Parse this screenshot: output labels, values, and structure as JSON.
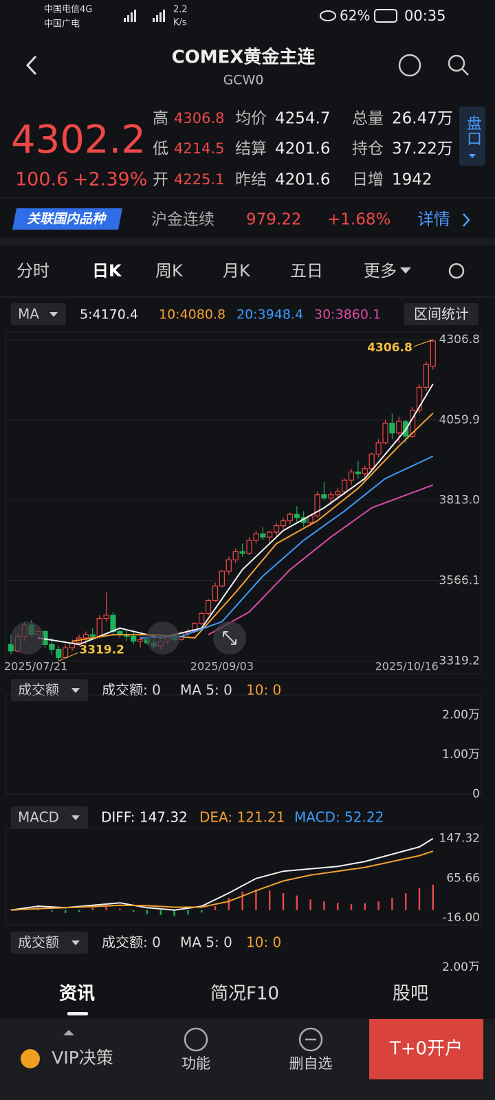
{
  "status": {
    "carrier1": "中国电信4G",
    "carrier2": "中国广电",
    "speed": "2.2",
    "speed_unit": "K/s",
    "battery": "62%",
    "time": "00:35"
  },
  "header": {
    "title": "COMEX黄金主连",
    "code": "GCW0"
  },
  "quote": {
    "price": "4302.2",
    "change": "100.6",
    "change_pct": "+2.39%",
    "stats": [
      {
        "label": "高",
        "value": "4306.8"
      },
      {
        "label": "均价",
        "value": "4254.7"
      },
      {
        "label": "总量",
        "value": "26.47万"
      },
      {
        "label": "低",
        "value": "4214.5"
      },
      {
        "label": "结算",
        "value": "4201.6"
      },
      {
        "label": "持仓",
        "value": "37.22万"
      },
      {
        "label": "开",
        "value": "4225.1"
      },
      {
        "label": "昨结",
        "value": "4201.6"
      },
      {
        "label": "日增",
        "value": "1942"
      }
    ],
    "side_button": "盘口"
  },
  "related": {
    "badge": "关联国内品种",
    "name": "沪金连续",
    "price": "979.22",
    "change": "+1.68%",
    "link": "详情"
  },
  "tabs": [
    "分时",
    "日K",
    "周K",
    "月K",
    "五日",
    "更多"
  ],
  "indicator_box": "MA",
  "stats_button": "区间统计",
  "chart_data": [
    {
      "type": "candlestick",
      "grid": true,
      "up_color": "#f04848",
      "down_color": "#1fb05a",
      "categories": [
        "2025/07/21",
        null,
        null,
        null,
        null,
        null,
        null,
        null,
        null,
        null,
        null,
        null,
        null,
        null,
        null,
        null,
        null,
        null,
        null,
        null,
        null,
        null,
        null,
        null,
        null,
        null,
        null,
        null,
        null,
        null,
        null,
        "2025/09/03",
        null,
        null,
        null,
        null,
        null,
        null,
        null,
        null,
        null,
        null,
        null,
        null,
        null,
        null,
        null,
        null,
        null,
        null,
        null,
        null,
        null,
        null,
        null,
        null,
        null,
        null,
        null,
        null,
        null,
        null,
        "2025/10/16"
      ],
      "ohlc": [
        [
          3370,
          3400,
          3340,
          3350
        ],
        [
          3350,
          3405,
          3345,
          3395
        ],
        [
          3395,
          3440,
          3380,
          3430
        ],
        [
          3430,
          3445,
          3390,
          3400
        ],
        [
          3400,
          3420,
          3380,
          3410
        ],
        [
          3410,
          3415,
          3360,
          3370
        ],
        [
          3370,
          3390,
          3340,
          3355
        ],
        [
          3355,
          3365,
          3319.2,
          3330
        ],
        [
          3330,
          3370,
          3328,
          3360
        ],
        [
          3360,
          3385,
          3350,
          3375
        ],
        [
          3375,
          3400,
          3365,
          3390
        ],
        [
          3390,
          3410,
          3370,
          3400
        ],
        [
          3400,
          3420,
          3385,
          3395
        ],
        [
          3395,
          3460,
          3390,
          3450
        ],
        [
          3450,
          3530,
          3440,
          3460
        ],
        [
          3460,
          3470,
          3395,
          3410
        ],
        [
          3410,
          3425,
          3390,
          3400
        ],
        [
          3400,
          3415,
          3380,
          3395
        ],
        [
          3395,
          3410,
          3370,
          3380
        ],
        [
          3380,
          3395,
          3360,
          3385
        ],
        [
          3385,
          3400,
          3370,
          3375
        ],
        [
          3375,
          3390,
          3355,
          3365
        ],
        [
          3365,
          3385,
          3355,
          3380
        ],
        [
          3380,
          3395,
          3370,
          3390
        ],
        [
          3390,
          3400,
          3375,
          3385
        ],
        [
          3385,
          3410,
          3380,
          3405
        ],
        [
          3405,
          3420,
          3395,
          3410
        ],
        [
          3410,
          3440,
          3405,
          3435
        ],
        [
          3435,
          3470,
          3430,
          3465
        ],
        [
          3465,
          3510,
          3460,
          3505
        ],
        [
          3505,
          3560,
          3500,
          3550
        ],
        [
          3550,
          3600,
          3545,
          3595
        ],
        [
          3595,
          3640,
          3585,
          3630
        ],
        [
          3630,
          3665,
          3620,
          3655
        ],
        [
          3655,
          3680,
          3640,
          3650
        ],
        [
          3650,
          3700,
          3645,
          3690
        ],
        [
          3690,
          3720,
          3680,
          3710
        ],
        [
          3710,
          3730,
          3690,
          3700
        ],
        [
          3700,
          3720,
          3680,
          3715
        ],
        [
          3715,
          3745,
          3705,
          3735
        ],
        [
          3735,
          3760,
          3725,
          3750
        ],
        [
          3750,
          3775,
          3740,
          3770
        ],
        [
          3770,
          3795,
          3745,
          3760
        ],
        [
          3760,
          3780,
          3730,
          3745
        ],
        [
          3745,
          3770,
          3735,
          3765
        ],
        [
          3765,
          3840,
          3760,
          3830
        ],
        [
          3830,
          3870,
          3815,
          3820
        ],
        [
          3820,
          3840,
          3800,
          3830
        ],
        [
          3830,
          3850,
          3815,
          3840
        ],
        [
          3840,
          3880,
          3830,
          3875
        ],
        [
          3875,
          3910,
          3860,
          3900
        ],
        [
          3900,
          3935,
          3880,
          3895
        ],
        [
          3895,
          3920,
          3870,
          3910
        ],
        [
          3910,
          3960,
          3900,
          3955
        ],
        [
          3955,
          4000,
          3945,
          3990
        ],
        [
          3990,
          4060,
          3985,
          4050
        ],
        [
          4050,
          4080,
          4000,
          4020
        ],
        [
          4020,
          4070,
          3990,
          4055
        ],
        [
          4055,
          4060,
          3990,
          4010
        ],
        [
          4010,
          4100,
          4005,
          4090
        ],
        [
          4090,
          4170,
          4080,
          4160
        ],
        [
          4160,
          4240,
          4150,
          4230
        ],
        [
          4225.1,
          4306.8,
          4214.5,
          4302.2
        ]
      ],
      "series": [
        {
          "name": "5:4170.4",
          "color": "#f2f2f2",
          "x": [
            4,
            10,
            16,
            22,
            28,
            34,
            40,
            46,
            52,
            58,
            62
          ],
          "values": [
            3390,
            3370,
            3420,
            3390,
            3420,
            3600,
            3720,
            3790,
            3880,
            4030,
            4170.4
          ]
        },
        {
          "name": "10:4080.8",
          "color": "#f5a030",
          "x": [
            9,
            15,
            21,
            27,
            33,
            39,
            45,
            51,
            57,
            62
          ],
          "values": [
            3380,
            3400,
            3400,
            3390,
            3530,
            3680,
            3750,
            3850,
            3980,
            4080.8
          ]
        },
        {
          "name": "20:3948.4",
          "color": "#3c9cff",
          "x": [
            19,
            25,
            31,
            37,
            43,
            49,
            55,
            62
          ],
          "values": [
            3390,
            3395,
            3440,
            3580,
            3690,
            3780,
            3880,
            3948.4
          ]
        },
        {
          "name": "30:3860.1",
          "color": "#e04aa8",
          "x": [
            29,
            35,
            41,
            47,
            53,
            62
          ],
          "values": [
            3400,
            3470,
            3600,
            3700,
            3790,
            3860.1
          ]
        }
      ],
      "ylim": [
        3280,
        4330
      ],
      "yticks": [
        4306.8,
        4059.9,
        {
          "value": 3813,
          "label": "3813.0"
        },
        3566.1,
        3319.2
      ],
      "max_label": "4306.8",
      "min_label": "3319.2"
    },
    {
      "type": "volume",
      "title": "成交额",
      "labels": [
        "成交额: 0",
        "MA 5: 0",
        "10: 0"
      ],
      "ylim": [
        0,
        25000
      ],
      "yticks": [
        {
          "value": 20000,
          "label": "2.00万"
        },
        {
          "value": 10000,
          "label": "1.00万"
        },
        0
      ]
    },
    {
      "type": "macd",
      "title": "MACD",
      "grid": false,
      "series": [
        {
          "name": "DIFF: 147.32",
          "color": "#f2f2f2",
          "x": [
            0,
            4,
            8,
            12,
            16,
            20,
            24,
            28,
            32,
            36,
            40,
            44,
            48,
            52,
            56,
            60,
            62
          ],
          "values": [
            0,
            8,
            5,
            10,
            15,
            5,
            0,
            8,
            35,
            65,
            80,
            85,
            90,
            100,
            115,
            130,
            147.32
          ]
        },
        {
          "name": "DEA: 121.21",
          "color": "#f5a030",
          "x": [
            0,
            4,
            8,
            12,
            16,
            20,
            24,
            28,
            32,
            36,
            40,
            44,
            48,
            52,
            56,
            60,
            62
          ],
          "values": [
            0,
            3,
            5,
            7,
            10,
            9,
            6,
            6,
            18,
            40,
            60,
            72,
            80,
            88,
            100,
            112,
            121.21
          ]
        }
      ],
      "histogram": {
        "name": "MACD: 52.22",
        "color": "#3c9cff",
        "x": [
          0,
          2,
          4,
          6,
          8,
          10,
          12,
          14,
          16,
          18,
          20,
          22,
          24,
          26,
          28,
          30,
          32,
          34,
          36,
          38,
          40,
          42,
          44,
          46,
          48,
          50,
          52,
          54,
          56,
          58,
          60,
          62
        ],
        "values": [
          2,
          4,
          6,
          -3,
          -6,
          -4,
          5,
          8,
          3,
          -4,
          -8,
          -10,
          -12,
          -9,
          -5,
          8,
          25,
          38,
          42,
          40,
          35,
          30,
          22,
          18,
          15,
          12,
          14,
          18,
          25,
          35,
          45,
          52.22
        ]
      },
      "ylim": [
        -30,
        168
      ],
      "yticks": [
        147.32,
        65.66,
        {
          "value": -16,
          "label": "-16.00"
        }
      ]
    },
    {
      "type": "volume",
      "title": "成交额",
      "labels": [
        "成交额: 0",
        "MA 5: 0",
        "10: 0"
      ],
      "ylim": [
        0,
        25000
      ],
      "yticks": [
        {
          "value": 20000,
          "label": "2.00万"
        }
      ]
    }
  ],
  "bottom_tabs": [
    "资讯",
    "简况F10",
    "股吧"
  ],
  "nav": [
    "VIP决策",
    "功能",
    "删自选",
    "T+0开户"
  ]
}
